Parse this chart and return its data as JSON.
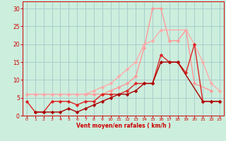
{
  "background_color": "#cceedd",
  "grid_color": "#aacccc",
  "xlabel": "Vent moyen/en rafales ( km/h )",
  "xlabel_color": "#cc0000",
  "tick_color": "#cc0000",
  "spine_color": "#cc0000",
  "xlim": [
    -0.5,
    23.5
  ],
  "ylim": [
    0,
    32
  ],
  "xticks": [
    0,
    1,
    2,
    3,
    4,
    5,
    6,
    7,
    8,
    9,
    10,
    11,
    12,
    13,
    14,
    15,
    16,
    17,
    18,
    19,
    20,
    21,
    22,
    23
  ],
  "yticks": [
    0,
    5,
    10,
    15,
    20,
    25,
    30
  ],
  "series": [
    {
      "x": [
        0,
        1,
        2,
        3,
        4,
        5,
        6,
        7,
        8,
        9,
        10,
        11,
        12,
        13,
        14,
        15,
        16,
        17,
        18,
        19,
        20,
        22
      ],
      "y": [
        6,
        6,
        6,
        6,
        6,
        6,
        6,
        6,
        6,
        6,
        7,
        8,
        9,
        11,
        19,
        30,
        30,
        21,
        21,
        24,
        9,
        7
      ],
      "color": "#ff9999",
      "lw": 1.0,
      "marker": "D",
      "ms": 2.5
    },
    {
      "x": [
        0,
        1,
        2,
        3,
        4,
        5,
        6,
        7,
        8,
        9,
        10,
        11,
        12,
        13,
        14,
        15,
        16,
        19,
        20,
        21,
        22,
        23
      ],
      "y": [
        6,
        6,
        6,
        6,
        6,
        6,
        6,
        6,
        7,
        8,
        9,
        11,
        13,
        15,
        20,
        21,
        24,
        24,
        20,
        15,
        9,
        7
      ],
      "color": "#ffaaaa",
      "lw": 1.0,
      "marker": "D",
      "ms": 2.5
    },
    {
      "x": [
        0,
        1,
        2,
        3,
        4,
        5,
        6,
        7,
        8,
        9,
        10,
        11,
        12,
        13,
        14,
        15,
        16,
        17,
        18,
        19,
        20,
        21,
        22,
        23
      ],
      "y": [
        4,
        1,
        1,
        4,
        4,
        4,
        3,
        4,
        4,
        6,
        6,
        6,
        7,
        9,
        9,
        9,
        17,
        15,
        15,
        12,
        20,
        4,
        4,
        4
      ],
      "color": "#dd2222",
      "lw": 1.0,
      "marker": "D",
      "ms": 2.5
    },
    {
      "x": [
        1,
        2,
        3,
        4,
        5,
        6,
        7,
        8,
        9,
        10,
        11,
        12,
        13,
        14,
        15,
        16,
        17,
        18,
        21,
        22,
        23
      ],
      "y": [
        1,
        1,
        1,
        1,
        2,
        1,
        2,
        3,
        4,
        5,
        6,
        6,
        7,
        9,
        9,
        15,
        15,
        15,
        4,
        4,
        4
      ],
      "color": "#aa0000",
      "lw": 1.0,
      "marker": "D",
      "ms": 2.5
    }
  ]
}
